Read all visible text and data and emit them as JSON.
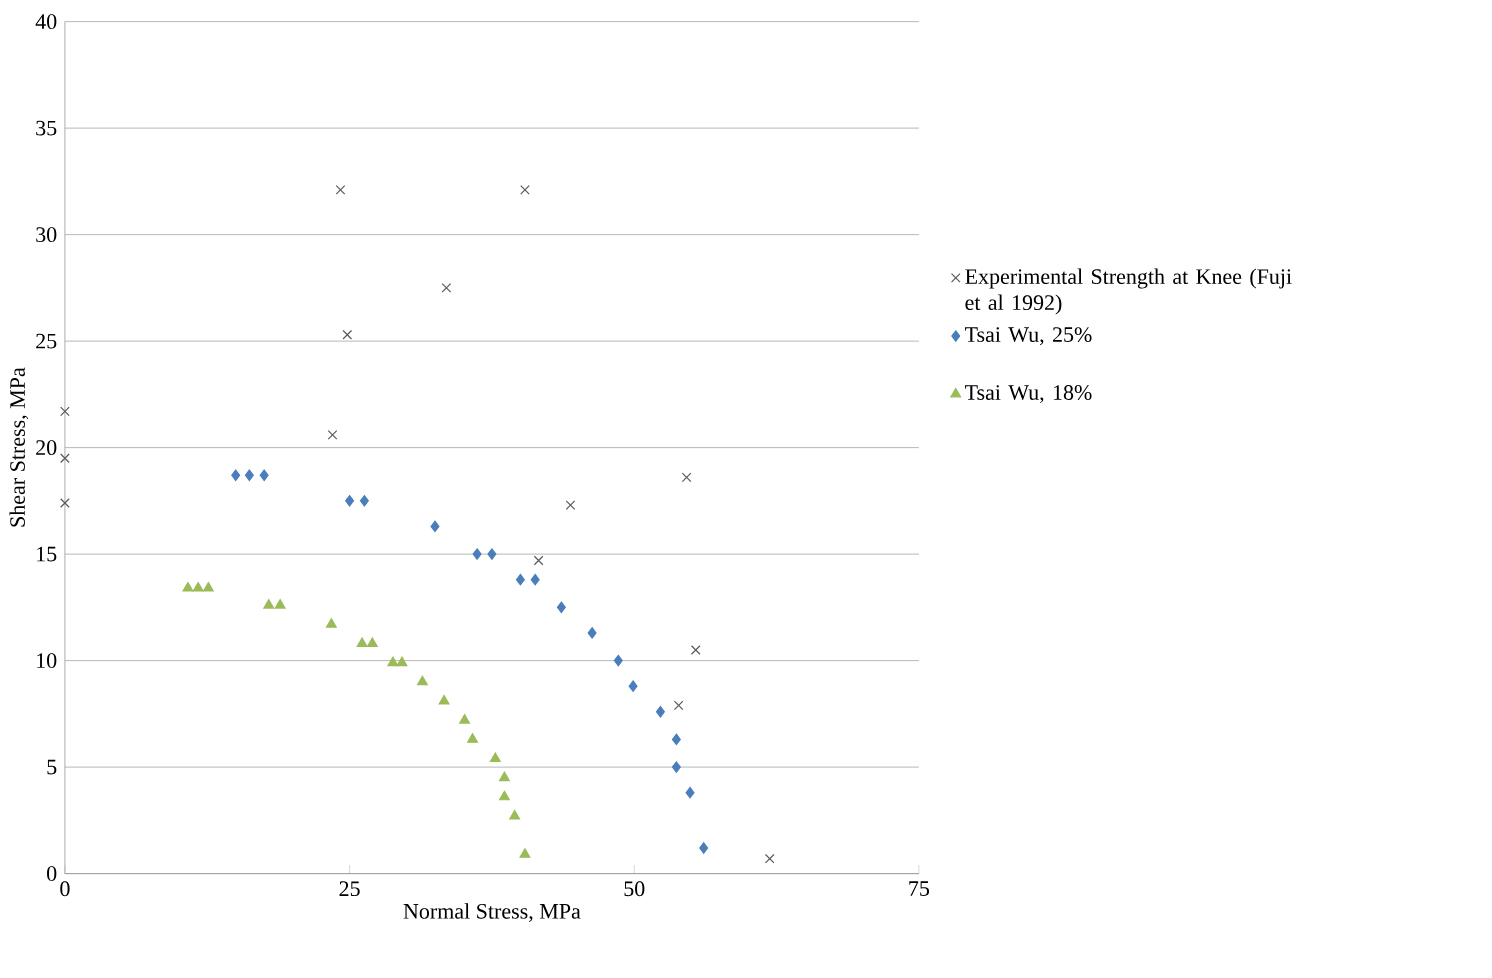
{
  "chart_data": {
    "type": "scatter",
    "xlabel": "Normal Stress, MPa",
    "ylabel": "Shear Stress, MPa",
    "xlim": [
      0,
      75
    ],
    "xticks": [
      0,
      25,
      50,
      75
    ],
    "ylim": [
      0,
      40
    ],
    "yticks": [
      0,
      5,
      10,
      15,
      20,
      25,
      30,
      35,
      40
    ],
    "grid": "y",
    "legend": "right",
    "series": [
      {
        "name": "Experimental Strength at Knee (Fuji et al 1992)",
        "color": "#595959",
        "marker": "cross",
        "x": [
          0,
          0,
          0,
          24.2,
          40.4,
          33.5,
          24.8,
          23.5,
          44.4,
          41.6,
          54.6,
          55.4,
          53.9,
          61.9
        ],
        "values": [
          21.7,
          19.5,
          17.4,
          32.1,
          32.1,
          27.5,
          25.3,
          20.6,
          17.3,
          14.7,
          18.6,
          10.5,
          7.9,
          0.7
        ]
      },
      {
        "name": "Tsai Wu, 25%",
        "color": "#4a7ebb",
        "marker": "diamond",
        "x": [
          15.0,
          16.2,
          17.5,
          25.0,
          26.3,
          32.5,
          36.2,
          37.5,
          40.0,
          41.3,
          43.6,
          46.3,
          48.6,
          49.9,
          52.3,
          53.7,
          53.7,
          54.9,
          56.1
        ],
        "values": [
          18.7,
          18.7,
          18.7,
          17.5,
          17.5,
          16.3,
          15.0,
          15.0,
          13.8,
          13.8,
          12.5,
          11.3,
          10.0,
          8.8,
          7.6,
          6.3,
          5.0,
          3.8,
          1.2
        ]
      },
      {
        "name": "Tsai Wu, 18%",
        "color": "#9bbb59",
        "marker": "triangle",
        "x": [
          10.8,
          11.7,
          12.6,
          17.9,
          18.9,
          23.4,
          26.1,
          27.0,
          28.8,
          29.6,
          31.4,
          33.3,
          35.1,
          35.8,
          37.8,
          38.6,
          38.6,
          39.5,
          40.4
        ],
        "values": [
          13.4,
          13.4,
          13.4,
          12.6,
          12.6,
          11.7,
          10.8,
          10.8,
          9.9,
          9.9,
          9.0,
          8.1,
          7.2,
          6.3,
          5.4,
          4.5,
          3.6,
          2.7,
          0.9
        ]
      }
    ]
  }
}
